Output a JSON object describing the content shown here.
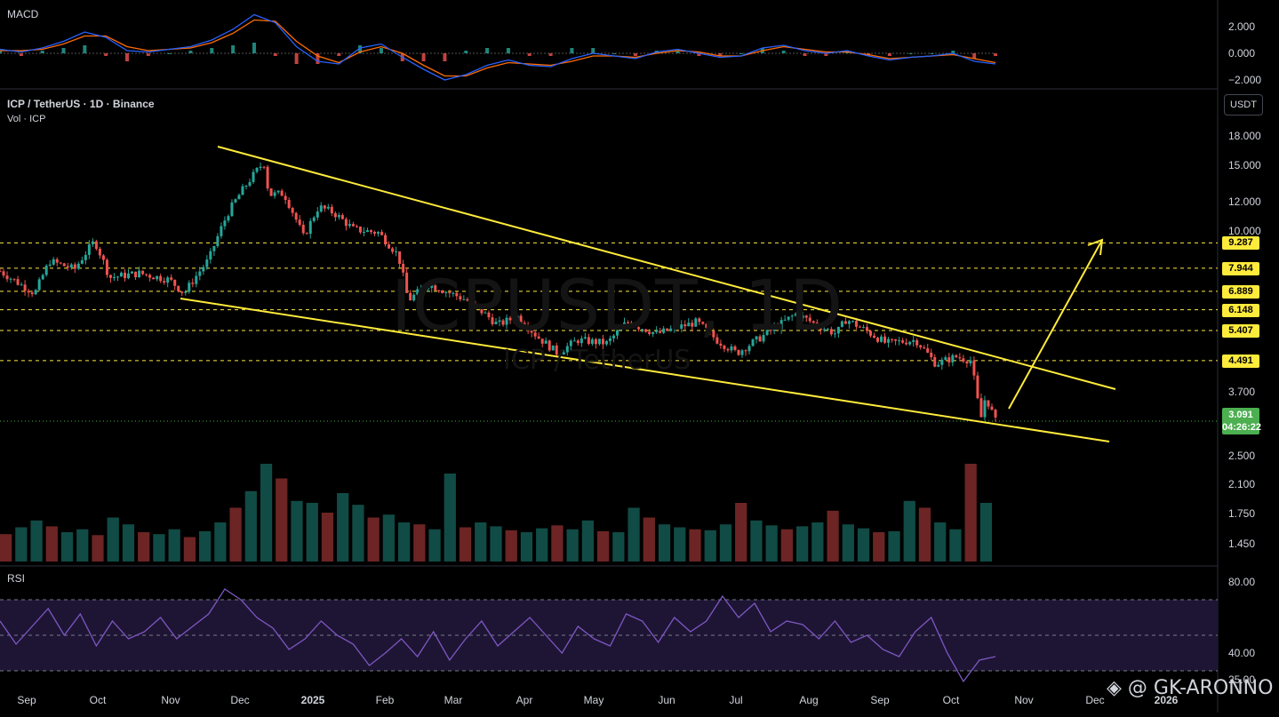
{
  "symbol_header": "ICP / TetherUS · 1D · Binance",
  "volume_header": "Vol · ICP",
  "macd_label": "MACD",
  "rsi_label": "RSI",
  "watermark_symbol": "ICPUSDT, 1D",
  "watermark_name": "ICP / TetherUS",
  "author_watermark": "GK-ARONNO",
  "currency_button": "USDT",
  "current_price": "3.091",
  "countdown": "04:26:22",
  "colors": {
    "background": "#000000",
    "up_candle": "#26a69a",
    "down_candle": "#ef5350",
    "trendline": "#ffeb3b",
    "level_badge": "#ffeb3b",
    "price_badge": "#4caf50",
    "macd_line": "#2962ff",
    "signal_line": "#ff6d00",
    "rsi_line": "#7e57c2"
  },
  "chart_data": [
    {
      "type": "line",
      "panel": "MACD",
      "y_ticks": [
        "2.000",
        "0.000",
        "−2.000"
      ],
      "series": [
        {
          "name": "MACD",
          "values": [
            0.3,
            0.1,
            0.4,
            0.9,
            1.6,
            1.2,
            0.2,
            0.1,
            0.3,
            0.5,
            1.0,
            1.8,
            2.9,
            2.3,
            0.5,
            -0.6,
            -0.8,
            0.4,
            0.7,
            -0.3,
            -1.2,
            -2.0,
            -1.6,
            -0.9,
            -0.5,
            -0.9,
            -1.0,
            -0.4,
            0.0,
            -0.2,
            -0.4,
            0.1,
            0.3,
            0.0,
            -0.3,
            -0.2,
            0.4,
            0.6,
            0.2,
            0.0,
            0.2,
            -0.2,
            -0.5,
            -0.3,
            -0.2,
            0.0,
            -0.6,
            -0.8
          ]
        },
        {
          "name": "Signal",
          "values": [
            0.2,
            0.2,
            0.3,
            0.7,
            1.3,
            1.3,
            0.5,
            0.2,
            0.3,
            0.4,
            0.8,
            1.5,
            2.5,
            2.4,
            0.9,
            -0.2,
            -0.7,
            0.1,
            0.5,
            0.0,
            -0.9,
            -1.7,
            -1.7,
            -1.1,
            -0.7,
            -0.8,
            -0.9,
            -0.6,
            -0.2,
            -0.2,
            -0.3,
            0.0,
            0.2,
            0.1,
            -0.2,
            -0.2,
            0.2,
            0.5,
            0.3,
            0.1,
            0.1,
            -0.1,
            -0.4,
            -0.3,
            -0.2,
            -0.1,
            -0.4,
            -0.7
          ]
        }
      ]
    },
    {
      "type": "candlestick",
      "panel": "Price",
      "y_scale": "log",
      "y_ticks": [
        "18.000",
        "15.000",
        "12.000",
        "10.000",
        "7.944",
        "6.889",
        "6.148",
        "5.407",
        "4.491",
        "3.700",
        "2.500",
        "2.100",
        "1.750",
        "1.450"
      ],
      "horizontal_levels": [
        "9.287",
        "7.944",
        "6.889",
        "6.148",
        "5.407",
        "4.491"
      ],
      "x_labels": [
        "Sep",
        "Oct",
        "Nov",
        "Dec",
        "2025",
        "Feb",
        "Mar",
        "Apr",
        "May",
        "Jun",
        "Jul",
        "Aug",
        "Sep",
        "Oct",
        "Nov",
        "Dec",
        "2026"
      ],
      "x_bold_labels": [
        "2025",
        "2026"
      ],
      "close_path": [
        {
          "t": 0.0,
          "p": 7.8
        },
        {
          "t": 0.02,
          "p": 7.2
        },
        {
          "t": 0.035,
          "p": 6.8
        },
        {
          "t": 0.05,
          "p": 8.3
        },
        {
          "t": 0.075,
          "p": 7.9
        },
        {
          "t": 0.095,
          "p": 9.4
        },
        {
          "t": 0.11,
          "p": 7.5
        },
        {
          "t": 0.14,
          "p": 7.7
        },
        {
          "t": 0.17,
          "p": 7.4
        },
        {
          "t": 0.185,
          "p": 6.8
        },
        {
          "t": 0.21,
          "p": 8.4
        },
        {
          "t": 0.23,
          "p": 11.3
        },
        {
          "t": 0.25,
          "p": 13.6
        },
        {
          "t": 0.265,
          "p": 15.3
        },
        {
          "t": 0.27,
          "p": 12.5
        },
        {
          "t": 0.285,
          "p": 12.6
        },
        {
          "t": 0.305,
          "p": 9.6
        },
        {
          "t": 0.32,
          "p": 11.6
        },
        {
          "t": 0.335,
          "p": 11.2
        },
        {
          "t": 0.355,
          "p": 10.1
        },
        {
          "t": 0.38,
          "p": 9.9
        },
        {
          "t": 0.4,
          "p": 8.6
        },
        {
          "t": 0.41,
          "p": 6.5
        },
        {
          "t": 0.43,
          "p": 7.2
        },
        {
          "t": 0.47,
          "p": 6.5
        },
        {
          "t": 0.5,
          "p": 5.6
        },
        {
          "t": 0.52,
          "p": 5.9
        },
        {
          "t": 0.54,
          "p": 5.2
        },
        {
          "t": 0.56,
          "p": 4.7
        },
        {
          "t": 0.58,
          "p": 5.1
        },
        {
          "t": 0.61,
          "p": 5.0
        },
        {
          "t": 0.63,
          "p": 5.7
        },
        {
          "t": 0.66,
          "p": 5.3
        },
        {
          "t": 0.68,
          "p": 5.5
        },
        {
          "t": 0.7,
          "p": 5.7
        },
        {
          "t": 0.72,
          "p": 5.1
        },
        {
          "t": 0.74,
          "p": 4.7
        },
        {
          "t": 0.77,
          "p": 5.3
        },
        {
          "t": 0.8,
          "p": 6.0
        },
        {
          "t": 0.82,
          "p": 5.6
        },
        {
          "t": 0.84,
          "p": 5.3
        },
        {
          "t": 0.85,
          "p": 5.8
        },
        {
          "t": 0.87,
          "p": 5.4
        },
        {
          "t": 0.89,
          "p": 5.0
        },
        {
          "t": 0.92,
          "p": 5.1
        },
        {
          "t": 0.94,
          "p": 4.4
        },
        {
          "t": 0.96,
          "p": 4.6
        },
        {
          "t": 0.975,
          "p": 4.5
        },
        {
          "t": 0.985,
          "p": 3.1
        },
        {
          "t": 0.99,
          "p": 3.6
        },
        {
          "t": 1.0,
          "p": 3.091
        }
      ],
      "trendlines": [
        {
          "name": "upper",
          "from": {
            "date": "Nov 2024",
            "price": 16.5
          },
          "to": {
            "date": "Nov 2025",
            "price": 3.6
          }
        },
        {
          "name": "lower",
          "from": {
            "date": "Nov 2024",
            "price": 6.6
          },
          "to": {
            "date": "Nov 2025",
            "price": 2.75
          }
        },
        {
          "name": "projection",
          "from": {
            "date": "Oct 2025",
            "price": 3.2
          },
          "to": {
            "date": "Nov 2025",
            "price": 9.287
          }
        }
      ]
    },
    {
      "type": "bar",
      "panel": "Volume",
      "note": "relative volume, scale 0-1",
      "values": [
        0.28,
        0.35,
        0.42,
        0.36,
        0.3,
        0.33,
        0.27,
        0.45,
        0.38,
        0.3,
        0.28,
        0.33,
        0.25,
        0.31,
        0.4,
        0.55,
        0.72,
        1.0,
        0.85,
        0.62,
        0.6,
        0.5,
        0.7,
        0.58,
        0.45,
        0.48,
        0.4,
        0.38,
        0.33,
        0.9,
        0.35,
        0.4,
        0.36,
        0.32,
        0.3,
        0.34,
        0.37,
        0.33,
        0.42,
        0.31,
        0.3,
        0.55,
        0.45,
        0.38,
        0.35,
        0.33,
        0.32,
        0.38,
        0.6,
        0.42,
        0.37,
        0.33,
        0.36,
        0.4,
        0.52,
        0.38,
        0.34,
        0.3,
        0.31,
        0.62,
        0.55,
        0.4,
        0.33,
        1.0,
        0.6
      ]
    },
    {
      "type": "line",
      "panel": "RSI",
      "y_ticks": [
        "80.00",
        "40.00",
        "25.00"
      ],
      "bands": [
        70,
        30
      ],
      "series": [
        {
          "name": "RSI",
          "values": [
            58,
            45,
            55,
            65,
            50,
            62,
            44,
            58,
            48,
            52,
            60,
            48,
            55,
            62,
            76,
            70,
            60,
            54,
            42,
            48,
            58,
            50,
            45,
            33,
            40,
            48,
            38,
            52,
            36,
            48,
            58,
            44,
            52,
            60,
            50,
            40,
            55,
            48,
            44,
            62,
            58,
            46,
            60,
            52,
            58,
            72,
            60,
            68,
            52,
            58,
            56,
            48,
            58,
            46,
            50,
            42,
            38,
            52,
            60,
            40,
            24,
            36,
            38
          ]
        }
      ]
    }
  ]
}
